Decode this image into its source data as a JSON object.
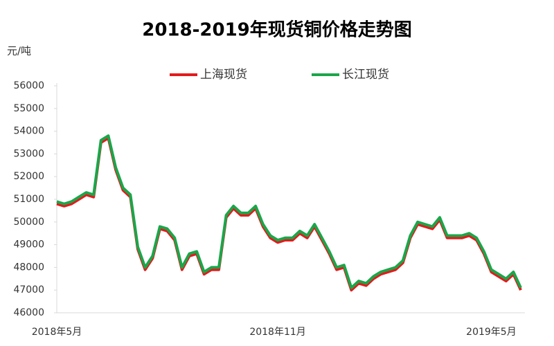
{
  "chart_data": {
    "type": "line",
    "title": "2018-2019年现货铜价格走势图",
    "y_label": "元/吨",
    "categories": [
      "2018年5月",
      null,
      null,
      null,
      null,
      null,
      null,
      null,
      null,
      null,
      null,
      null,
      null,
      null,
      null,
      null,
      null,
      null,
      null,
      null,
      null,
      null,
      null,
      null,
      null,
      null,
      null,
      null,
      null,
      null,
      "2018年11月",
      null,
      null,
      null,
      null,
      null,
      null,
      null,
      null,
      null,
      null,
      null,
      null,
      null,
      null,
      null,
      null,
      null,
      null,
      null,
      null,
      null,
      null,
      null,
      null,
      null,
      null,
      null,
      null,
      "2019年5月",
      null,
      null,
      null,
      null
    ],
    "series": [
      {
        "name": "上海现货",
        "color": "#e31a1c",
        "values": [
          50800,
          50700,
          50800,
          51000,
          51200,
          51100,
          53500,
          53700,
          52300,
          51400,
          51100,
          48800,
          47900,
          48400,
          49700,
          49600,
          49200,
          47900,
          48500,
          48600,
          47700,
          47900,
          47900,
          50200,
          50600,
          50300,
          50300,
          50600,
          49800,
          49300,
          49100,
          49200,
          49200,
          49500,
          49300,
          49800,
          49200,
          48600,
          47900,
          48000,
          47000,
          47300,
          47200,
          47500,
          47700,
          47800,
          47900,
          48200,
          49300,
          49900,
          49800,
          49700,
          50100,
          49300,
          49300,
          49300,
          49400,
          49200,
          48600,
          47800,
          47600,
          47400,
          47700,
          47000
        ]
      },
      {
        "name": "长江现货",
        "color": "#1aa64a",
        "values": [
          50900,
          50800,
          50900,
          51100,
          51300,
          51200,
          53600,
          53800,
          52400,
          51500,
          51200,
          48900,
          48000,
          48500,
          49800,
          49700,
          49300,
          48000,
          48600,
          48700,
          47800,
          48000,
          48000,
          50300,
          50700,
          50400,
          50400,
          50700,
          49900,
          49400,
          49200,
          49300,
          49300,
          49600,
          49400,
          49900,
          49300,
          48700,
          48000,
          48100,
          47100,
          47400,
          47300,
          47600,
          47800,
          47900,
          48000,
          48300,
          49400,
          50000,
          49900,
          49800,
          50200,
          49400,
          49400,
          49400,
          49500,
          49300,
          48700,
          47900,
          47700,
          47500,
          47800,
          47100
        ]
      }
    ],
    "ylim": [
      46000,
      56000
    ],
    "yticks": [
      46000,
      47000,
      48000,
      49000,
      50000,
      51000,
      52000,
      53000,
      54000,
      55000,
      56000
    ],
    "grid": false,
    "legend": "top"
  }
}
